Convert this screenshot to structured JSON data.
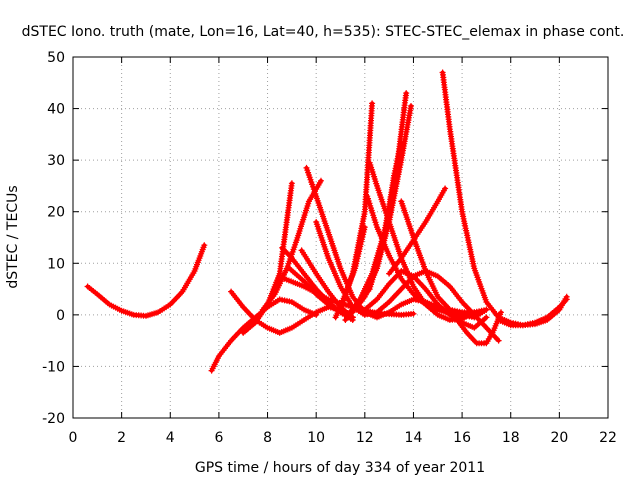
{
  "chart_data": {
    "type": "scatter",
    "title": "dSTEC Iono. truth (mate, Lon=16, Lat=40, h=535): STEC-STEC_elemax in phase cont.",
    "xlabel": "GPS time / hours of day 334 of year 2011",
    "ylabel": "dSTEC  / TECUs",
    "xlim": [
      0,
      22
    ],
    "ylim": [
      -20,
      50
    ],
    "xticks": [
      0,
      2,
      4,
      6,
      8,
      10,
      12,
      14,
      16,
      18,
      20,
      22
    ],
    "yticks": [
      -20,
      -10,
      0,
      10,
      20,
      30,
      40,
      50
    ],
    "grid": true,
    "marker": "+",
    "color": "#ff0000",
    "series": [
      {
        "x": [
          0.6,
          1.0,
          1.5,
          2.0,
          2.5,
          3.0,
          3.5,
          4.0,
          4.5,
          5.0,
          5.4
        ],
        "y": [
          5.5,
          4.0,
          2.0,
          0.8,
          0.0,
          -0.2,
          0.5,
          2.0,
          4.5,
          8.5,
          13.5
        ]
      },
      {
        "x": [
          5.7,
          6.0,
          6.5,
          7.0,
          7.5,
          8.0,
          8.5,
          9.0,
          9.5,
          10.0
        ],
        "y": [
          -10.8,
          -8.0,
          -5.0,
          -2.5,
          -0.5,
          1.5,
          3.0,
          2.5,
          1.0,
          0.0
        ]
      },
      {
        "x": [
          6.5,
          7.0,
          7.5,
          8.0,
          8.5,
          9.0,
          9.5,
          10.0,
          10.5,
          11.0,
          11.5
        ],
        "y": [
          4.5,
          1.5,
          -1.0,
          -2.5,
          -3.5,
          -2.5,
          -1.0,
          0.5,
          1.5,
          1.0,
          -0.5
        ]
      },
      {
        "x": [
          7.0,
          7.5,
          8.0,
          8.5,
          9.0
        ],
        "y": [
          -3.5,
          -1.5,
          2.0,
          8.0,
          25.5
        ]
      },
      {
        "x": [
          7.8,
          8.3,
          8.8,
          9.2,
          9.7,
          10.2
        ],
        "y": [
          1.0,
          4.0,
          9.0,
          14.5,
          22.0,
          26.0
        ]
      },
      {
        "x": [
          8.6,
          9.0,
          9.5,
          10.0,
          10.5,
          11.0,
          11.5
        ],
        "y": [
          13.0,
          11.0,
          8.0,
          5.0,
          2.5,
          0.5,
          -1.0
        ]
      },
      {
        "x": [
          8.7,
          9.5,
          10.5,
          11.5,
          12.5,
          13.5,
          14.0
        ],
        "y": [
          7.0,
          5.5,
          3.0,
          1.5,
          0.3,
          0.0,
          0.2
        ]
      },
      {
        "x": [
          8.9,
          9.5,
          10.0,
          10.5,
          11.0,
          11.5
        ],
        "y": [
          9.0,
          6.5,
          4.0,
          2.0,
          0.5,
          -0.5
        ]
      },
      {
        "x": [
          9.4,
          10.0,
          10.5,
          11.0,
          11.5
        ],
        "y": [
          12.5,
          8.0,
          4.5,
          1.5,
          -0.5
        ]
      },
      {
        "x": [
          9.6,
          10.0,
          10.5,
          11.0,
          11.5,
          12.0,
          12.5,
          13.0,
          13.5,
          14.0,
          14.5,
          15.0,
          15.5,
          16.0
        ],
        "y": [
          28.5,
          23.0,
          16.0,
          9.0,
          3.5,
          0.5,
          -0.5,
          0.5,
          2.0,
          3.0,
          2.5,
          1.5,
          0.5,
          -0.5
        ]
      },
      {
        "x": [
          10.0,
          10.5,
          11.0,
          11.5,
          12.0,
          12.5,
          13.0,
          13.5,
          14.0,
          14.5,
          15.0,
          15.5,
          16.0,
          16.5,
          17.0,
          17.5
        ],
        "y": [
          18.0,
          11.0,
          5.5,
          1.5,
          0.0,
          0.5,
          2.5,
          5.0,
          7.5,
          8.5,
          7.5,
          5.5,
          2.5,
          0.0,
          -2.5,
          -5.0
        ]
      },
      {
        "x": [
          10.8,
          11.2,
          11.6,
          12.0
        ],
        "y": [
          -0.5,
          4.0,
          9.0,
          17.0
        ]
      },
      {
        "x": [
          11.0,
          11.5,
          12.0,
          12.3
        ],
        "y": [
          1.0,
          8.0,
          20.0,
          41.0
        ]
      },
      {
        "x": [
          11.2,
          11.7,
          12.2,
          12.8,
          13.2,
          13.5
        ],
        "y": [
          -1.0,
          2.0,
          5.0,
          15.0,
          27.0,
          33.5
        ]
      },
      {
        "x": [
          11.3,
          11.8,
          12.3,
          12.8,
          13.3,
          13.7
        ],
        "y": [
          0.0,
          3.0,
          8.0,
          16.0,
          28.0,
          43.0
        ]
      },
      {
        "x": [
          11.5,
          12.0,
          12.5,
          13.0,
          13.5,
          13.9
        ],
        "y": [
          0.5,
          3.5,
          9.0,
          18.0,
          30.0,
          40.5
        ]
      },
      {
        "x": [
          12.0,
          12.5,
          13.0,
          13.5,
          14.0,
          14.5,
          15.0,
          15.5,
          16.0,
          16.5,
          17.0
        ],
        "y": [
          1.0,
          3.0,
          6.0,
          8.5,
          7.5,
          5.0,
          2.0,
          0.0,
          -1.5,
          -2.5,
          -0.5
        ]
      },
      {
        "x": [
          12.1,
          12.5,
          13.0,
          13.5,
          14.0,
          14.5,
          15.0,
          15.5,
          16.0,
          16.5,
          17.0
        ],
        "y": [
          23.0,
          17.0,
          11.5,
          7.0,
          4.0,
          2.0,
          1.0,
          0.3,
          0.0,
          -0.5,
          1.0
        ]
      },
      {
        "x": [
          12.2,
          12.5,
          13.0,
          13.5,
          14.0,
          14.5,
          15.0,
          15.5,
          16.0,
          16.5
        ],
        "y": [
          29.5,
          25.0,
          18.0,
          11.0,
          5.5,
          2.0,
          0.0,
          -1.0,
          -0.8,
          0.5
        ]
      },
      {
        "x": [
          13.0,
          13.5,
          14.0,
          14.5,
          15.0,
          15.3
        ],
        "y": [
          8.0,
          11.0,
          14.5,
          18.0,
          22.0,
          24.5
        ]
      },
      {
        "x": [
          13.5,
          14.0,
          14.5,
          15.0,
          15.5,
          16.0,
          16.5,
          17.0
        ],
        "y": [
          22.0,
          15.0,
          8.5,
          3.5,
          1.0,
          0.5,
          0.5,
          1.0
        ]
      },
      {
        "x": [
          15.2,
          15.5,
          16.0,
          16.5,
          17.0,
          17.5,
          18.0,
          18.5,
          19.0,
          19.5,
          20.0,
          20.3
        ],
        "y": [
          47.0,
          36.0,
          20.0,
          9.0,
          2.5,
          -0.5,
          -1.5,
          -2.0,
          -1.8,
          -1.0,
          1.0,
          3.5
        ]
      },
      {
        "x": [
          15.8,
          16.2,
          16.6,
          17.0,
          17.3,
          17.6
        ],
        "y": [
          -1.0,
          -3.5,
          -5.5,
          -5.5,
          -3.0,
          0.5
        ]
      },
      {
        "x": [
          17.5,
          18.0,
          18.5,
          19.0,
          19.5,
          20.0,
          20.3
        ],
        "y": [
          -1.0,
          -2.0,
          -2.0,
          -1.5,
          -0.5,
          1.5,
          3.0
        ]
      }
    ]
  }
}
